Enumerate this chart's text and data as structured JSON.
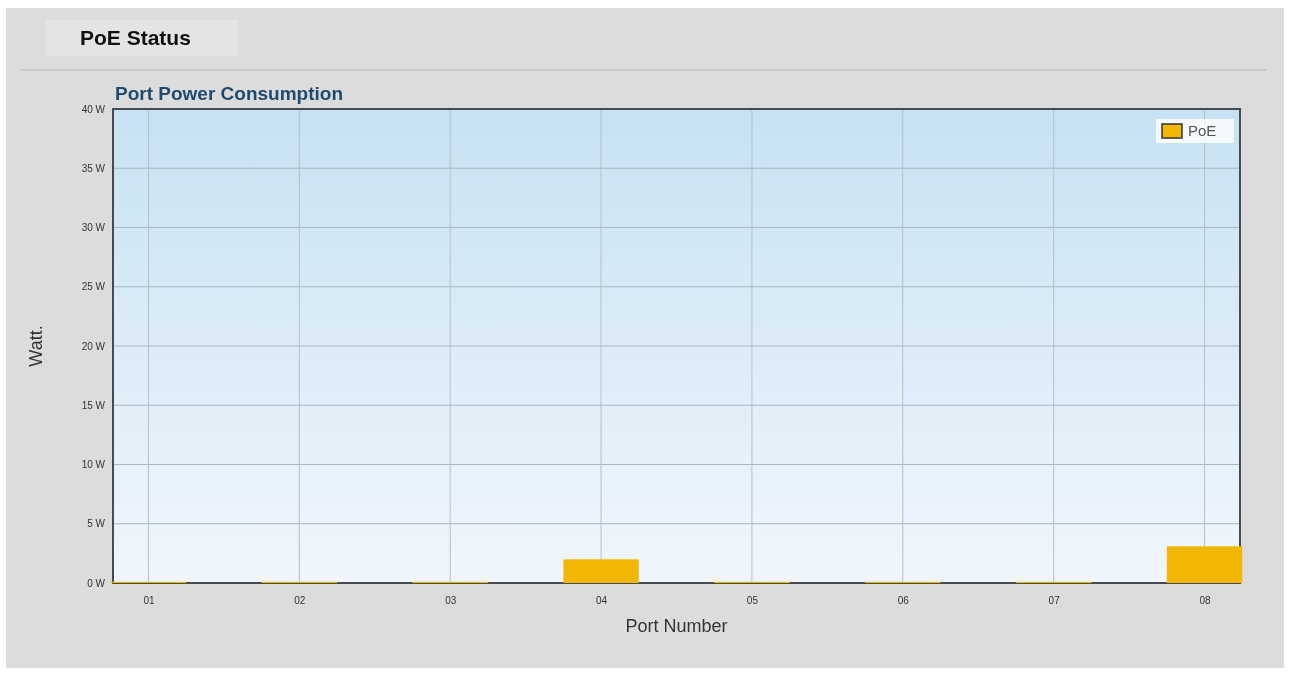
{
  "chart_data": {
    "type": "bar",
    "subtitle": "PoE Status",
    "title": "Port Power Consumption",
    "xlabel": "Port Number",
    "ylabel": "Watt.",
    "categories": [
      "01",
      "02",
      "03",
      "04",
      "05",
      "06",
      "07",
      "08"
    ],
    "series": [
      {
        "name": "PoE",
        "color": "#f2b705",
        "values": [
          0.1,
          0.1,
          0.1,
          2.0,
          0.1,
          0.1,
          0.1,
          3.1
        ]
      }
    ],
    "ylim": [
      0,
      40
    ],
    "yticks": [
      {
        "value": 0,
        "label": "0 W"
      },
      {
        "value": 5,
        "label": "5 W"
      },
      {
        "value": 10,
        "label": "10 W"
      },
      {
        "value": 15,
        "label": "15 W"
      },
      {
        "value": 20,
        "label": "20 W"
      },
      {
        "value": 25,
        "label": "25 W"
      },
      {
        "value": 30,
        "label": "30 W"
      },
      {
        "value": 35,
        "label": "35 W"
      },
      {
        "value": 40,
        "label": "40 W"
      }
    ],
    "grid": true,
    "legend": "top right"
  }
}
